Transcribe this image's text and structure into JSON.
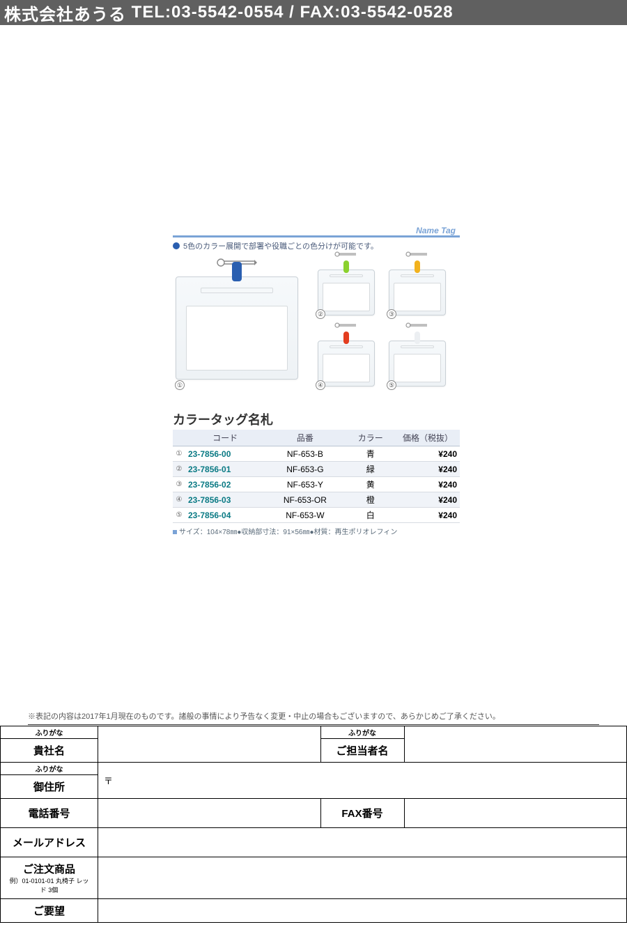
{
  "header": {
    "company": "株式会社あうる",
    "tel_label": "TEL",
    "tel": "03-5542-0554",
    "fax_label": "FAX",
    "fax": "03-5542-0528",
    "separator": "/"
  },
  "catalog": {
    "section_label": "Name Tag",
    "tagline": "5色のカラー展開で部署や役職ごとの色分けが可能です。",
    "title": "カラータッグ名札",
    "columns": {
      "code": "コード",
      "part": "品番",
      "color": "カラー",
      "price": "価格（税抜）"
    },
    "rows": [
      {
        "n": "①",
        "code": "23-7856-00",
        "part": "NF-653-B",
        "color": "青",
        "price": "¥240",
        "clip_color": "#2a5fb0"
      },
      {
        "n": "②",
        "code": "23-7856-01",
        "part": "NF-653-G",
        "color": "緑",
        "price": "¥240",
        "clip_color": "#8bd12e"
      },
      {
        "n": "③",
        "code": "23-7856-02",
        "part": "NF-653-Y",
        "color": "黄",
        "price": "¥240",
        "clip_color": "#f2b21e"
      },
      {
        "n": "④",
        "code": "23-7856-03",
        "part": "NF-653-OR",
        "color": "橙",
        "price": "¥240",
        "clip_color": "#e33d1f"
      },
      {
        "n": "⑤",
        "code": "23-7856-04",
        "part": "NF-653-W",
        "color": "白",
        "price": "¥240",
        "clip_color": "#eceff2"
      }
    ],
    "spec": "サイズ：104×78㎜●収納部寸法：91×56㎜●材質：再生ポリオレフィン",
    "table_style": {
      "header_bg": "#e9eef6",
      "row_alt_bg": "#f0f3f8",
      "code_color": "#0a7a84",
      "border_color": "#d7dbe2",
      "accent_color": "#7aa3d6"
    }
  },
  "disclaimer": "※表記の内容は2017年1月現在のものです。諸般の事情により予告なく変更・中止の場合もございますので、あらかじめご了承ください。",
  "order_form": {
    "furigana": "ふりがな",
    "company_name": "貴社名",
    "contact_name": "ご担当者名",
    "address": "御住所",
    "postmark": "〒",
    "tel": "電話番号",
    "fax": "FAX番号",
    "email": "メールアドレス",
    "products": "ご注文商品",
    "products_example": "例）01-0101-01 丸椅子 レッド 3個",
    "notes": "ご要望"
  }
}
